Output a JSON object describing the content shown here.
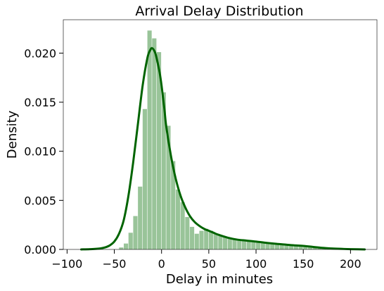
{
  "chart_data": {
    "type": "histogram",
    "title": "Arrival Delay Distribution",
    "xlabel": "Delay in minutes",
    "ylabel": "Density",
    "xlim": [
      -104,
      228
    ],
    "ylim": [
      0,
      0.0234
    ],
    "xticks": [
      -100,
      -50,
      0,
      50,
      100,
      150,
      200
    ],
    "xtick_labels": [
      "−100",
      "−50",
      "0",
      "50",
      "100",
      "150",
      "200"
    ],
    "yticks": [
      0,
      0.005,
      0.01,
      0.015,
      0.02
    ],
    "ytick_labels": [
      "0.000",
      "0.005",
      "0.010",
      "0.015",
      "0.020"
    ],
    "grid": false,
    "bar_color": "#99c499",
    "kde_color": "#006400",
    "histogram": {
      "bin_width": 5,
      "bins": [
        {
          "start": -45,
          "density": 0.0002
        },
        {
          "start": -40,
          "density": 0.0006
        },
        {
          "start": -35,
          "density": 0.0017
        },
        {
          "start": -30,
          "density": 0.0034
        },
        {
          "start": -25,
          "density": 0.0064
        },
        {
          "start": -20,
          "density": 0.0143
        },
        {
          "start": -15,
          "density": 0.0223
        },
        {
          "start": -10,
          "density": 0.0215
        },
        {
          "start": -5,
          "density": 0.0201
        },
        {
          "start": 0,
          "density": 0.016
        },
        {
          "start": 5,
          "density": 0.0126
        },
        {
          "start": 10,
          "density": 0.009
        },
        {
          "start": 15,
          "density": 0.0061
        },
        {
          "start": 20,
          "density": 0.0048
        },
        {
          "start": 25,
          "density": 0.0033
        },
        {
          "start": 30,
          "density": 0.0023
        },
        {
          "start": 35,
          "density": 0.0016
        },
        {
          "start": 40,
          "density": 0.0019
        },
        {
          "start": 45,
          "density": 0.0021
        },
        {
          "start": 50,
          "density": 0.0019
        },
        {
          "start": 55,
          "density": 0.0016
        },
        {
          "start": 60,
          "density": 0.0014
        },
        {
          "start": 65,
          "density": 0.0013
        },
        {
          "start": 70,
          "density": 0.0012
        },
        {
          "start": 75,
          "density": 0.0011
        },
        {
          "start": 80,
          "density": 0.001
        },
        {
          "start": 85,
          "density": 0.0009
        },
        {
          "start": 90,
          "density": 0.0009
        },
        {
          "start": 95,
          "density": 0.0008
        },
        {
          "start": 100,
          "density": 0.0008
        },
        {
          "start": 105,
          "density": 0.0007
        },
        {
          "start": 110,
          "density": 0.0007
        },
        {
          "start": 115,
          "density": 0.0006
        },
        {
          "start": 120,
          "density": 0.0006
        },
        {
          "start": 125,
          "density": 0.0006
        },
        {
          "start": 130,
          "density": 0.0005
        },
        {
          "start": 135,
          "density": 0.0005
        },
        {
          "start": 140,
          "density": 0.0004
        },
        {
          "start": 145,
          "density": 0.0004
        },
        {
          "start": 150,
          "density": 0.0004
        },
        {
          "start": 155,
          "density": 0.0003
        },
        {
          "start": 160,
          "density": 0.0003
        },
        {
          "start": 165,
          "density": 0.0002
        },
        {
          "start": 170,
          "density": 0.0002
        },
        {
          "start": 175,
          "density": 0.0001
        },
        {
          "start": 180,
          "density": 0.0001
        }
      ]
    },
    "kde": [
      [
        -85,
        0.0
      ],
      [
        -75,
        3e-05
      ],
      [
        -65,
        0.0001
      ],
      [
        -60,
        0.0002
      ],
      [
        -55,
        0.0004
      ],
      [
        -50,
        0.0008
      ],
      [
        -45,
        0.0016
      ],
      [
        -40,
        0.003
      ],
      [
        -35,
        0.0055
      ],
      [
        -30,
        0.0089
      ],
      [
        -25,
        0.0128
      ],
      [
        -20,
        0.0167
      ],
      [
        -15,
        0.0195
      ],
      [
        -12,
        0.0203
      ],
      [
        -10,
        0.0205
      ],
      [
        -7,
        0.0201
      ],
      [
        -5,
        0.0194
      ],
      [
        -2,
        0.018
      ],
      [
        0,
        0.0167
      ],
      [
        3,
        0.0143
      ],
      [
        5,
        0.0125
      ],
      [
        10,
        0.0095
      ],
      [
        15,
        0.0072
      ],
      [
        20,
        0.0055
      ],
      [
        25,
        0.0043
      ],
      [
        30,
        0.0034
      ],
      [
        35,
        0.0028
      ],
      [
        40,
        0.0024
      ],
      [
        45,
        0.0021
      ],
      [
        50,
        0.0019
      ],
      [
        55,
        0.0017
      ],
      [
        60,
        0.0015
      ],
      [
        70,
        0.0012
      ],
      [
        80,
        0.001
      ],
      [
        90,
        0.0009
      ],
      [
        100,
        0.0008
      ],
      [
        110,
        0.00068
      ],
      [
        120,
        0.00058
      ],
      [
        130,
        0.0005
      ],
      [
        140,
        0.00042
      ],
      [
        150,
        0.00036
      ],
      [
        160,
        0.00026
      ],
      [
        170,
        0.00016
      ],
      [
        180,
        0.0001
      ],
      [
        190,
        6e-05
      ],
      [
        200,
        3e-05
      ],
      [
        215,
        0.0
      ]
    ]
  }
}
